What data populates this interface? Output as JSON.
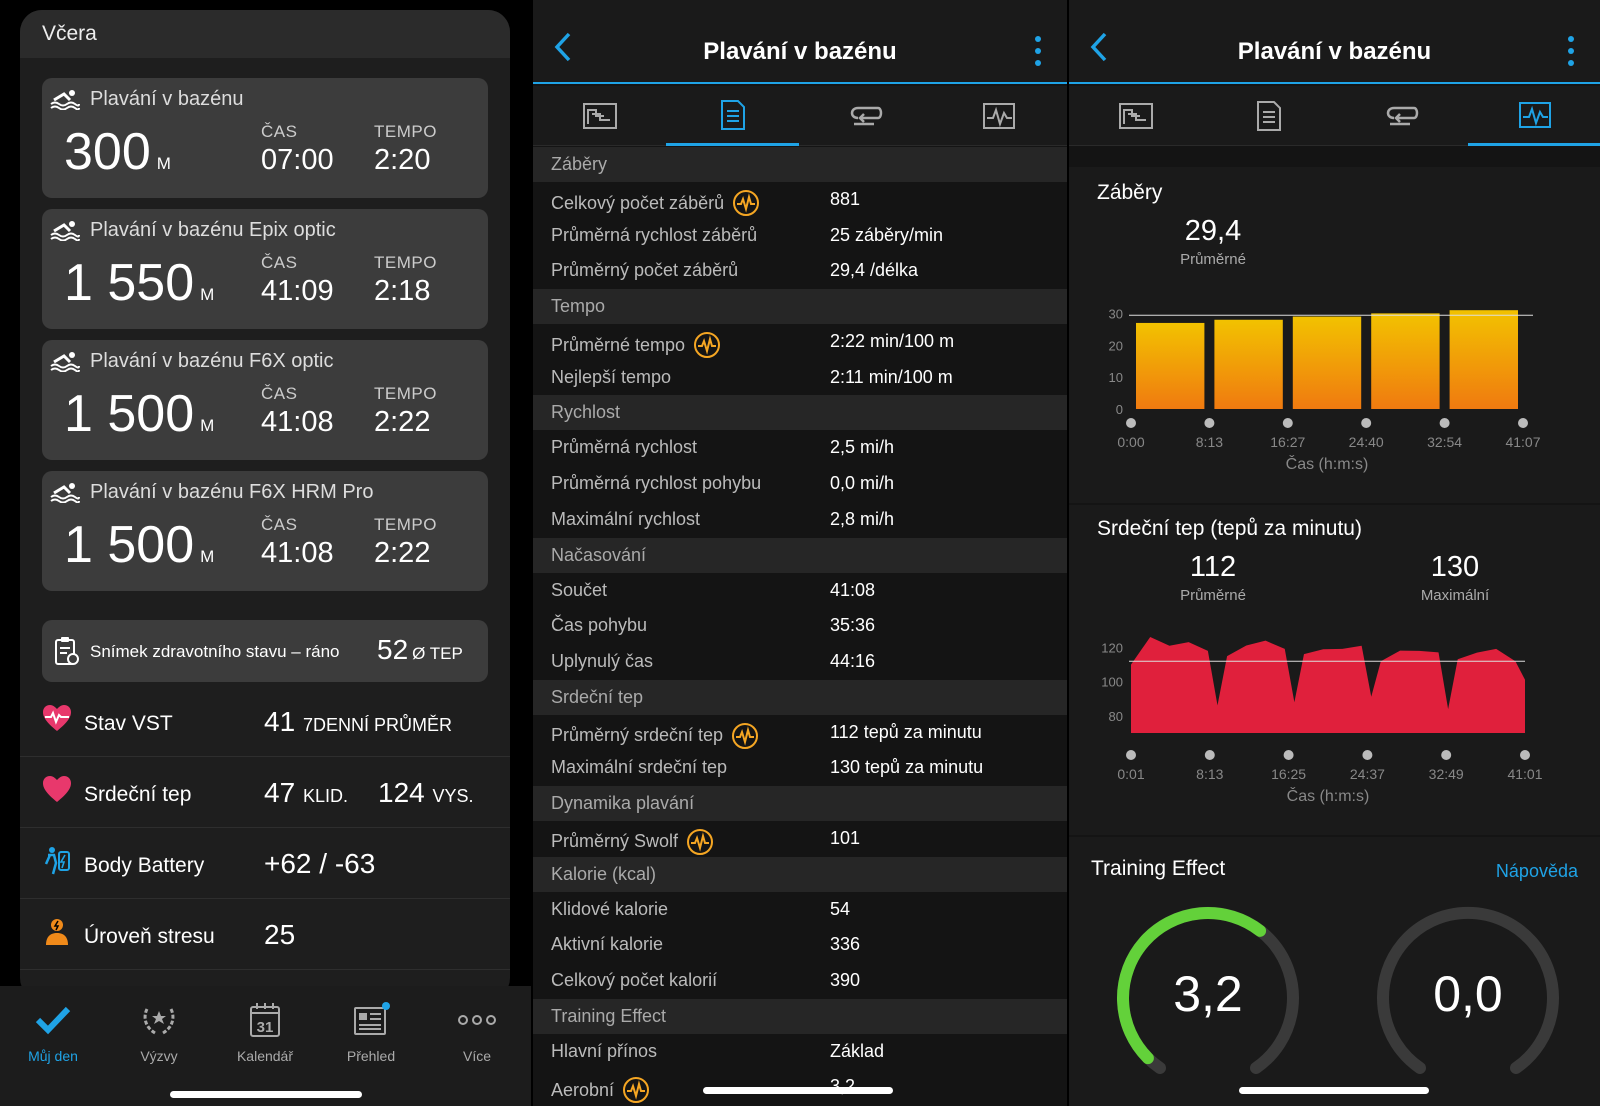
{
  "day": {
    "header": "Včera",
    "activities": [
      {
        "title": "Plavání v bazénu",
        "distance": "300",
        "unit": "M",
        "time_label": "ČAS",
        "time": "07:00",
        "pace_label": "TEMPO",
        "pace": "2:20"
      },
      {
        "title": "Plavání v bazénu Epix optic",
        "distance": "1 550",
        "unit": "M",
        "time_label": "ČAS",
        "time": "41:09",
        "pace_label": "TEMPO",
        "pace": "2:18"
      },
      {
        "title": "Plavání v bazénu F6X optic",
        "distance": "1 500",
        "unit": "M",
        "time_label": "ČAS",
        "time": "41:08",
        "pace_label": "TEMPO",
        "pace": "2:22"
      },
      {
        "title": "Plavání v bazénu F6X HRM Pro",
        "distance": "1 500",
        "unit": "M",
        "time_label": "ČAS",
        "time": "41:08",
        "pace_label": "TEMPO",
        "pace": "2:22"
      }
    ],
    "snapshot": {
      "label": "Snímek zdravotního stavu – ráno",
      "value": "52",
      "unit": "Ø TEP"
    },
    "rows": [
      {
        "name": "Stav VST",
        "value": "41",
        "suffix": "7DENNÍ PRŮMĚR",
        "icon": "hrv-heart-icon"
      },
      {
        "name": "Srdeční tep",
        "value": "47",
        "suffix": "KLID.",
        "value2": "124",
        "suffix2": "VYS.",
        "icon": "heart-icon"
      },
      {
        "name": "Body Battery",
        "value": "+62 / -63",
        "icon": "body-battery-icon"
      },
      {
        "name": "Úroveň stresu",
        "value": "25",
        "icon": "stress-icon"
      }
    ],
    "tabbar": [
      {
        "label": "Můj den",
        "active": true,
        "icon": "check-icon"
      },
      {
        "label": "Výzvy",
        "icon": "laurel-icon"
      },
      {
        "label": "Kalendář",
        "icon": "calendar-icon",
        "day": "31"
      },
      {
        "label": "Přehled",
        "icon": "news-icon"
      },
      {
        "label": "Více",
        "icon": "more-dots-icon"
      }
    ]
  },
  "detail": {
    "title": "Plavání v bazénu",
    "sections": [
      {
        "name": "Záběry",
        "items": [
          {
            "k": "Celkový počet záběrů",
            "v": "881",
            "badge": true
          },
          {
            "k": "Průměrná rychlost záběrů",
            "v": "25 záběry/min"
          },
          {
            "k": "Průměrný počet záběrů",
            "v": "29,4 /délka"
          }
        ]
      },
      {
        "name": "Tempo",
        "items": [
          {
            "k": "Průměrné tempo",
            "v": "2:22 min/100 m",
            "badge": true
          },
          {
            "k": "Nejlepší tempo",
            "v": "2:11 min/100 m"
          }
        ]
      },
      {
        "name": "Rychlost",
        "items": [
          {
            "k": "Průměrná rychlost",
            "v": "2,5 mi/h"
          },
          {
            "k": "Průměrná rychlost pohybu",
            "v": "0,0 mi/h"
          },
          {
            "k": "Maximální rychlost",
            "v": "2,8 mi/h"
          }
        ]
      },
      {
        "name": "Načasování",
        "items": [
          {
            "k": "Součet",
            "v": "41:08"
          },
          {
            "k": "Čas pohybu",
            "v": "35:36"
          },
          {
            "k": "Uplynulý čas",
            "v": "44:16"
          }
        ]
      },
      {
        "name": "Srdeční tep",
        "items": [
          {
            "k": "Průměrný srdeční tep",
            "v": "112 tepů za minutu",
            "badge": true
          },
          {
            "k": "Maximální srdeční tep",
            "v": "130 tepů za minutu"
          }
        ]
      },
      {
        "name": "Dynamika plavání",
        "items": [
          {
            "k": "Průměrný Swolf",
            "v": "101",
            "badge": true
          }
        ]
      },
      {
        "name": "Kalorie (kcal)",
        "items": [
          {
            "k": "Klidové kalorie",
            "v": "54"
          },
          {
            "k": "Aktivní kalorie",
            "v": "336"
          },
          {
            "k": "Celkový počet kalorií",
            "v": "390"
          }
        ]
      },
      {
        "name": "Training Effect",
        "items": [
          {
            "k": "Hlavní přínos",
            "v": "Základ"
          },
          {
            "k": "Aerobní",
            "v": "3,2",
            "badge": true
          }
        ]
      }
    ]
  },
  "charts": {
    "title": "Plavání v bazénu",
    "strokes": {
      "title": "Záběry",
      "avg": "29,4",
      "avg_label": "Průměrné",
      "xlabel": "Čas (h:m:s)",
      "yticks": [
        "30",
        "20",
        "10",
        "0"
      ],
      "xticks": [
        "0:00",
        "8:13",
        "16:27",
        "24:40",
        "32:54",
        "41:07"
      ],
      "colors": {
        "top": "#f2c200",
        "bottom": "#f07a10",
        "avg_line": "#dddddd"
      }
    },
    "hr": {
      "title": "Srdeční tep (tepů za minutu)",
      "avg": "112",
      "avg_label": "Průměrné",
      "max": "130",
      "max_label": "Maximální",
      "xlabel": "Čas (h:m:s)",
      "yticks": [
        "120",
        "100",
        "80"
      ],
      "xticks": [
        "0:01",
        "8:13",
        "16:25",
        "24:37",
        "32:49",
        "41:01"
      ],
      "color": "#e0203c"
    },
    "te": {
      "title": "Training Effect",
      "help": "Nápověda",
      "aerobic": "3,2",
      "anaerobic": "0,0",
      "colors": {
        "aerobic": "#63d13a",
        "track": "#3a3a3a"
      }
    }
  },
  "chart_data": [
    {
      "type": "bar",
      "title": "Záběry",
      "xlabel": "Čas (h:m:s)",
      "ylabel": "",
      "ylim": [
        0,
        32
      ],
      "categories": [
        "0:00–8:13",
        "8:13–16:27",
        "16:27–24:40",
        "24:40–32:54",
        "32:54–41:07"
      ],
      "values": [
        27,
        28,
        29,
        30,
        31
      ],
      "avg": 29.4
    },
    {
      "type": "area",
      "title": "Srdeční tep (tepů za minutu)",
      "xlabel": "Čas (h:m:s)",
      "ylabel": "",
      "ylim": [
        70,
        132
      ],
      "avg": 112,
      "max": 130,
      "x": [
        0,
        2,
        4,
        6,
        8,
        9,
        10,
        12,
        14,
        16,
        17,
        18,
        20,
        22,
        24,
        25,
        26,
        28,
        30,
        32,
        33,
        34,
        36,
        38,
        40,
        41
      ],
      "y": [
        110,
        125,
        121,
        122,
        118,
        85,
        115,
        120,
        124,
        118,
        88,
        115,
        119,
        118,
        121,
        90,
        112,
        117,
        118,
        116,
        84,
        112,
        117,
        118,
        112,
        100
      ]
    }
  ]
}
